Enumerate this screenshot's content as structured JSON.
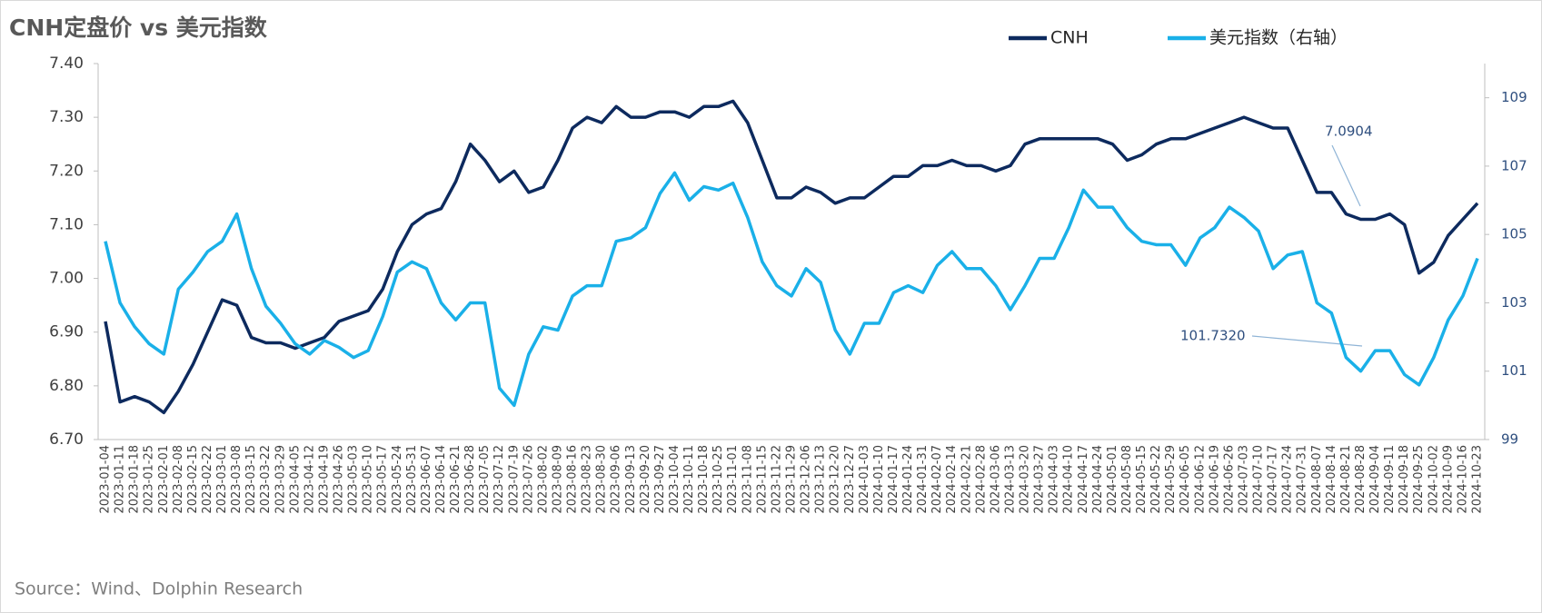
{
  "chart_data": {
    "type": "line",
    "title": "CNH定盘价 vs 美元指数",
    "source": "Source：Wind、Dolphin Research",
    "categories": [
      "2023-01-04",
      "2023-01-11",
      "2023-01-18",
      "2023-01-25",
      "2023-02-01",
      "2023-02-08",
      "2023-02-15",
      "2023-02-22",
      "2023-03-01",
      "2023-03-08",
      "2023-03-15",
      "2023-03-22",
      "2023-03-29",
      "2023-04-05",
      "2023-04-12",
      "2023-04-19",
      "2023-04-26",
      "2023-05-03",
      "2023-05-10",
      "2023-05-17",
      "2023-05-24",
      "2023-05-31",
      "2023-06-07",
      "2023-06-14",
      "2023-06-21",
      "2023-06-28",
      "2023-07-05",
      "2023-07-12",
      "2023-07-19",
      "2023-07-26",
      "2023-08-02",
      "2023-08-09",
      "2023-08-16",
      "2023-08-23",
      "2023-08-30",
      "2023-09-06",
      "2023-09-13",
      "2023-09-20",
      "2023-09-27",
      "2023-10-04",
      "2023-10-11",
      "2023-10-18",
      "2023-10-25",
      "2023-11-01",
      "2023-11-08",
      "2023-11-15",
      "2023-11-22",
      "2023-11-29",
      "2023-12-06",
      "2023-12-13",
      "2023-12-20",
      "2023-12-27",
      "2024-01-03",
      "2024-01-10",
      "2024-01-17",
      "2024-01-24",
      "2024-01-31",
      "2024-02-07",
      "2024-02-14",
      "2024-02-21",
      "2024-02-28",
      "2024-03-06",
      "2024-03-13",
      "2024-03-20",
      "2024-03-27",
      "2024-04-03",
      "2024-04-10",
      "2024-04-17",
      "2024-04-24",
      "2024-05-01",
      "2024-05-08",
      "2024-05-15",
      "2024-05-22",
      "2024-05-29",
      "2024-06-05",
      "2024-06-12",
      "2024-06-19",
      "2024-06-26",
      "2024-07-03",
      "2024-07-10",
      "2024-07-17",
      "2024-07-24",
      "2024-07-31",
      "2024-08-07",
      "2024-08-14",
      "2024-08-21",
      "2024-08-28",
      "2024-09-04",
      "2024-09-11",
      "2024-09-18",
      "2024-09-25",
      "2024-10-02",
      "2024-10-09",
      "2024-10-16",
      "2024-10-23"
    ],
    "series": [
      {
        "name": "CNH",
        "color": "#0d2a5e",
        "values": [
          6.92,
          6.77,
          6.78,
          6.77,
          6.75,
          6.79,
          6.84,
          6.9,
          6.96,
          6.95,
          6.89,
          6.88,
          6.88,
          6.87,
          6.88,
          6.89,
          6.92,
          6.93,
          6.94,
          6.98,
          7.05,
          7.1,
          7.12,
          7.13,
          7.18,
          7.25,
          7.22,
          7.18,
          7.2,
          7.16,
          7.17,
          7.22,
          7.28,
          7.3,
          7.29,
          7.32,
          7.3,
          7.3,
          7.31,
          7.31,
          7.3,
          7.32,
          7.32,
          7.33,
          7.29,
          7.22,
          7.15,
          7.15,
          7.17,
          7.16,
          7.14,
          7.15,
          7.15,
          7.17,
          7.19,
          7.19,
          7.21,
          7.21,
          7.22,
          7.21,
          7.21,
          7.2,
          7.21,
          7.25,
          7.26,
          7.26,
          7.26,
          7.26,
          7.26,
          7.25,
          7.22,
          7.23,
          7.25,
          7.26,
          7.26,
          7.27,
          7.28,
          7.29,
          7.3,
          7.29,
          7.28,
          7.28,
          7.22,
          7.16,
          7.16,
          7.12,
          7.11,
          7.11,
          7.12,
          7.1,
          7.01,
          7.03,
          7.08,
          7.11,
          7.14
        ]
      },
      {
        "name": "美元指数（右轴）",
        "color": "#1ab0e8",
        "axis": "y2",
        "values": [
          104.8,
          103.0,
          102.3,
          101.8,
          101.5,
          103.4,
          103.9,
          104.5,
          104.8,
          105.6,
          104.0,
          102.9,
          102.4,
          101.8,
          101.5,
          101.9,
          101.7,
          101.4,
          101.6,
          102.6,
          103.9,
          104.2,
          104.0,
          103.0,
          102.5,
          103.0,
          103.0,
          100.5,
          100.0,
          101.5,
          102.3,
          102.2,
          103.2,
          103.5,
          103.5,
          104.8,
          104.9,
          105.2,
          106.2,
          106.8,
          106.0,
          106.4,
          106.3,
          106.5,
          105.5,
          104.2,
          103.5,
          103.2,
          104.0,
          103.6,
          102.2,
          101.5,
          102.4,
          102.4,
          103.3,
          103.5,
          103.3,
          104.1,
          104.5,
          104.0,
          104.0,
          103.5,
          102.8,
          103.5,
          104.3,
          104.3,
          105.2,
          106.3,
          105.8,
          105.8,
          105.2,
          104.8,
          104.7,
          104.7,
          104.1,
          104.9,
          105.2,
          105.8,
          105.5,
          105.1,
          104.0,
          104.4,
          104.5,
          103.0,
          102.7,
          101.4,
          101.0,
          101.6,
          101.6,
          100.9,
          100.6,
          101.4,
          102.5,
          103.2,
          104.3
        ]
      }
    ],
    "ylim": [
      6.7,
      7.4
    ],
    "yticks": [
      {
        "value": 6.7,
        "label": "6.70"
      },
      {
        "value": 6.8,
        "label": "6.80"
      },
      {
        "value": 6.9,
        "label": "6.90"
      },
      {
        "value": 7.0,
        "label": "7.00"
      },
      {
        "value": 7.1,
        "label": "7.10"
      },
      {
        "value": 7.2,
        "label": "7.20"
      },
      {
        "value": 7.3,
        "label": "7.30"
      },
      {
        "value": 7.4,
        "label": "7.40"
      }
    ],
    "y2lim": [
      99,
      110
    ],
    "y2ticks": [
      99,
      101,
      103,
      105,
      107,
      109
    ],
    "annotations": [
      {
        "text": "7.0904"
      },
      {
        "text": "101.7320"
      }
    ],
    "legend": "top",
    "grid": false
  }
}
